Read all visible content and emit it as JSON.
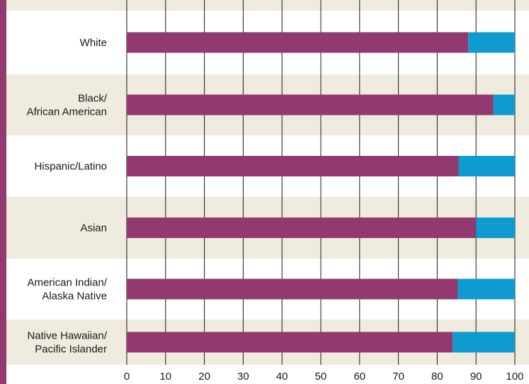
{
  "chart_data": {
    "type": "bar",
    "orientation": "horizontal",
    "stacked": true,
    "categories": [
      [
        "White"
      ],
      [
        "Black/",
        "African American"
      ],
      [
        "Hispanic/Latino"
      ],
      [
        "Asian"
      ],
      [
        "American Indian/",
        "Alaska Native"
      ],
      [
        "Native Hawaiian/",
        "Pacific Islander"
      ]
    ],
    "series": [
      {
        "values": [
          88,
          94.5,
          85.5,
          90,
          85.3,
          84
        ],
        "color": "#923a6f"
      },
      {
        "values": [
          12,
          5.5,
          14.5,
          10,
          14.7,
          16
        ],
        "color": "#0e9bd0"
      }
    ],
    "xlim": [
      0,
      100
    ],
    "xticks": [
      0,
      10,
      20,
      30,
      40,
      50,
      60,
      70,
      80,
      90,
      100
    ],
    "grid": "vertical",
    "band_colors": [
      "#ffffff",
      "#efebde"
    ],
    "frame_color": "#923a6f"
  }
}
